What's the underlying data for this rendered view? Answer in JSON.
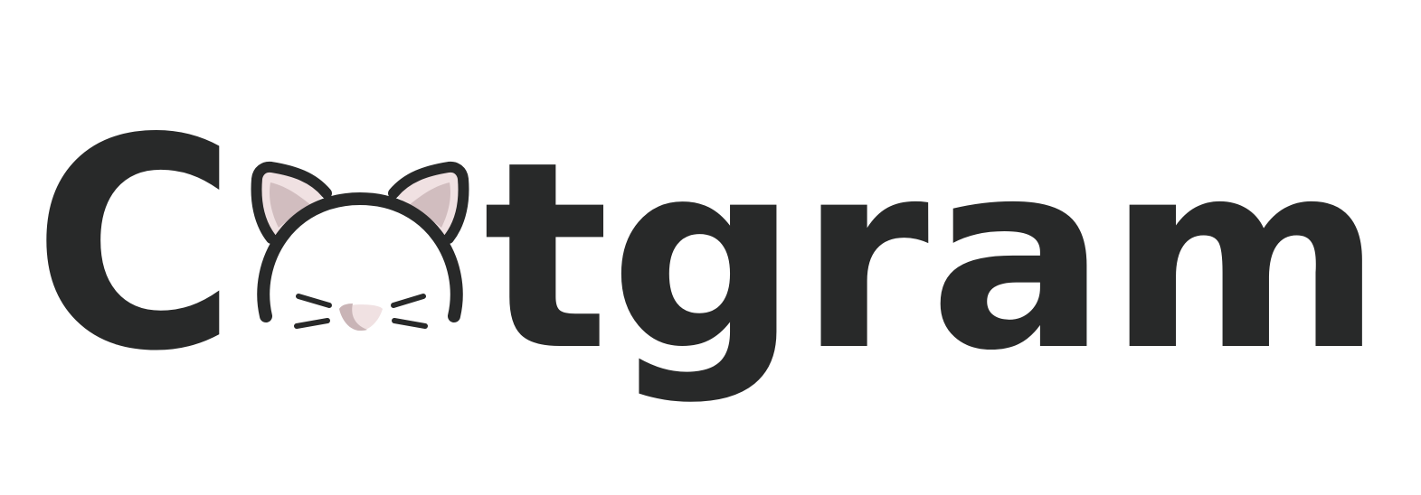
{
  "logo": {
    "wordmark": "Catgram",
    "letter_first": "C",
    "letters_rest": "tgram",
    "colors": {
      "ink": "#282929",
      "ear_inner": "#f0e1e2",
      "ear_shadow": "#c9b4b6",
      "nose": "#f0e1e2",
      "nose_shadow": "#c9b4b6",
      "background": "#ffffff"
    },
    "icon": "cat-face-icon"
  }
}
